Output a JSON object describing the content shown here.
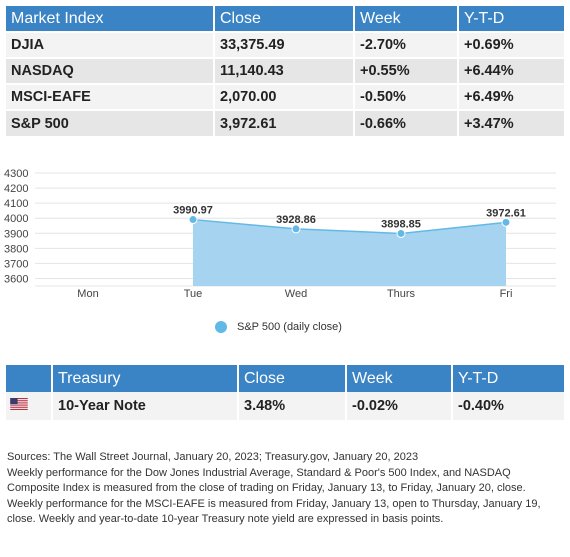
{
  "market_table": {
    "headers": [
      "Market Index",
      "Close",
      "Week",
      "Y-T-D"
    ],
    "rows": [
      {
        "index": "DJIA",
        "close": "33,375.49",
        "week": "-2.70%",
        "ytd": "+0.69%"
      },
      {
        "index": "NASDAQ",
        "close": "11,140.43",
        "week": "+0.55%",
        "ytd": "+6.44%"
      },
      {
        "index": "MSCI-EAFE",
        "close": "2,070.00",
        "week": "-0.50%",
        "ytd": "+6.49%"
      },
      {
        "index": "S&P 500",
        "close": "3,972.61",
        "week": "-0.66%",
        "ytd": "+3.47%"
      }
    ]
  },
  "chart_data": {
    "type": "area",
    "categories": [
      "Mon",
      "Tue",
      "Wed",
      "Thurs",
      "Fri"
    ],
    "series": [
      {
        "name": "S&P 500 (daily close)",
        "values": [
          null,
          3990.97,
          3928.86,
          3898.85,
          3972.61
        ],
        "labels": [
          "",
          "3990.97",
          "3928.86",
          "3898.85",
          "3972.61"
        ]
      }
    ],
    "yticks": [
      4300,
      4200,
      4100,
      4000,
      3900,
      3800,
      3700,
      3600
    ],
    "ylim": [
      3550,
      4300
    ],
    "grid": true,
    "legend": "bottom",
    "colors": {
      "fill": "#a6d3f0",
      "line": "#63b9e6",
      "marker": "#63b9e6"
    }
  },
  "treasury_table": {
    "headers": [
      "Treasury",
      "Close",
      "Week",
      "Y-T-D"
    ],
    "row": {
      "flag": "us-flag-icon",
      "name": "10-Year Note",
      "close": "3.48%",
      "week": "-0.02%",
      "ytd": "-0.40%"
    }
  },
  "notes": {
    "sources": "Sources: The Wall Street Journal, January 20, 2023; Treasury.gov, January 20, 2023",
    "body": "Weekly performance for the Dow Jones Industrial Average, Standard & Poor's 500 Index, and NASDAQ Composite Index is measured from the close of trading on Friday, January 13, to Friday, January 20, close. Weekly performance for the MSCI-EAFE is measured from Friday, January 13, open to Thursday, January 19, close. Weekly and year-to-date 10-year Treasury note yield are expressed in basis points."
  }
}
